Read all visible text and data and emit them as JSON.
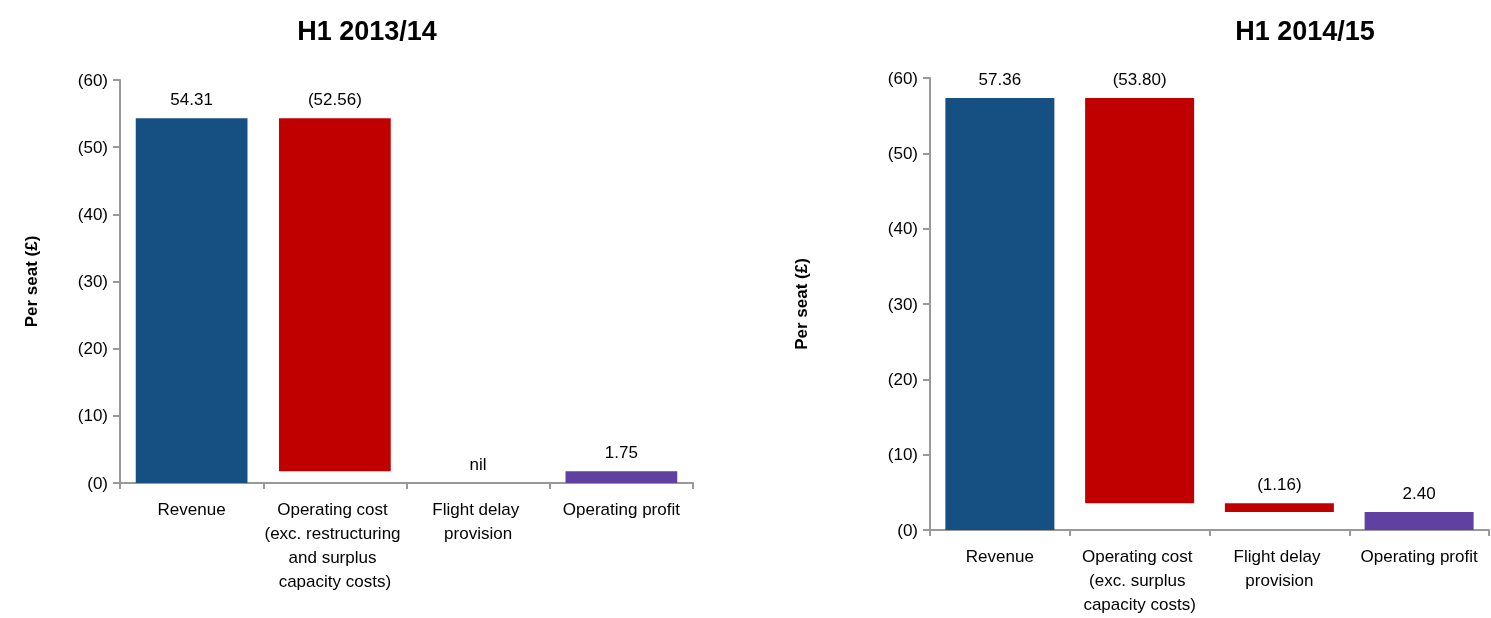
{
  "chart_data": [
    {
      "type": "bar",
      "title": "H1 2013/14",
      "ylabel": "Per seat (£)",
      "categories": [
        "Revenue",
        "Operating cost (exc. restructuring and surplus capacity costs)",
        "Flight delay provision",
        "Operating profit"
      ],
      "values": [
        54.31,
        52.56,
        0,
        1.75
      ],
      "base": [
        0,
        1.75,
        null,
        0
      ],
      "colors": [
        "#164f82",
        "#c00000",
        "#c00000",
        "#6040a0"
      ],
      "value_labels": [
        "54.31",
        "(52.56)",
        "nil",
        "1.75"
      ],
      "ylim": [
        0,
        60
      ],
      "yticks": [
        {
          "value": 0,
          "label": "(0)"
        },
        {
          "value": 10,
          "label": "(10)"
        },
        {
          "value": 20,
          "label": "(20)"
        },
        {
          "value": 30,
          "label": "(30)"
        },
        {
          "value": 40,
          "label": "(40)"
        },
        {
          "value": 50,
          "label": "(50)"
        },
        {
          "value": 60,
          "label": "(60)"
        }
      ],
      "grid": false
    },
    {
      "type": "bar",
      "title": "H1 2014/15",
      "ylabel": "Per seat (£)",
      "categories": [
        "Revenue",
        "Operating cost (exc. surplus capacity costs)",
        "Flight delay provision",
        "Operating profit"
      ],
      "values": [
        57.36,
        53.8,
        1.16,
        2.4
      ],
      "base": [
        0,
        3.56,
        2.4,
        0
      ],
      "colors": [
        "#164f82",
        "#c00000",
        "#c00000",
        "#6040a0"
      ],
      "value_labels": [
        "57.36",
        "(53.80)",
        "(1.16)",
        "2.40"
      ],
      "ylim": [
        0,
        60
      ],
      "yticks": [
        {
          "value": 0,
          "label": "(0)"
        },
        {
          "value": 10,
          "label": "(10)"
        },
        {
          "value": 20,
          "label": "(20)"
        },
        {
          "value": 30,
          "label": "(30)"
        },
        {
          "value": 40,
          "label": "(40)"
        },
        {
          "value": 50,
          "label": "(50)"
        },
        {
          "value": 60,
          "label": "(60)"
        }
      ],
      "grid": false
    }
  ]
}
